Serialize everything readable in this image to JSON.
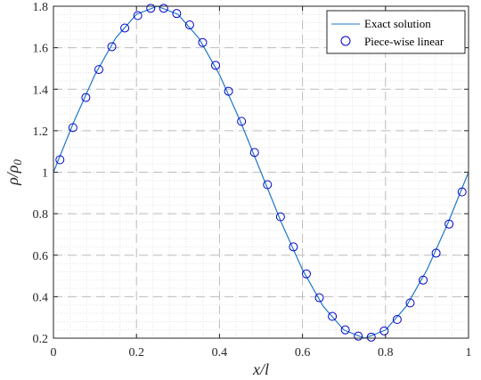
{
  "chart_data": {
    "type": "line",
    "title": "",
    "xlabel": "x/l",
    "ylabel_main": "ρ/ρ",
    "ylabel_sub": "0",
    "xlim": [
      0,
      1
    ],
    "ylim": [
      0.2,
      1.8
    ],
    "xticks": [
      0,
      0.2,
      0.4,
      0.6,
      0.8,
      1
    ],
    "xtick_labels": [
      "0",
      "0.2",
      "0.4",
      "0.6",
      "0.8",
      "1"
    ],
    "yticks": [
      0.2,
      0.4,
      0.6,
      0.8,
      1,
      1.2,
      1.4,
      1.6,
      1.8
    ],
    "ytick_labels": [
      "0.2",
      "0.4",
      "0.6",
      "0.8",
      "1",
      "1.2",
      "1.4",
      "1.6",
      "1.8"
    ],
    "grid": true,
    "legend_position": "top-right",
    "colors": {
      "line": "#1f78c8",
      "markers": "#0000cc",
      "grid_major": "#bdbdbd",
      "grid_minor": "#e3e3e3"
    },
    "series": [
      {
        "name": "Exact solution",
        "style": "line",
        "x": [
          0,
          0.05,
          0.1,
          0.15,
          0.2,
          0.25,
          0.3,
          0.35,
          0.4,
          0.45,
          0.5,
          0.55,
          0.6,
          0.65,
          0.7,
          0.75,
          0.8,
          0.85,
          0.9,
          0.95,
          1
        ],
        "y": [
          1.0,
          1.247,
          1.47,
          1.647,
          1.761,
          1.8,
          1.761,
          1.647,
          1.47,
          1.247,
          1.0,
          0.753,
          0.53,
          0.353,
          0.239,
          0.2,
          0.239,
          0.353,
          0.53,
          0.753,
          1.0
        ]
      },
      {
        "name": "Piece-wise linear",
        "style": "markers",
        "x": [
          0.0156,
          0.0469,
          0.0781,
          0.1094,
          0.1406,
          0.1719,
          0.2031,
          0.2344,
          0.2656,
          0.2969,
          0.3281,
          0.3594,
          0.3906,
          0.4219,
          0.4531,
          0.4844,
          0.5156,
          0.5469,
          0.5781,
          0.6094,
          0.6406,
          0.6719,
          0.7031,
          0.7344,
          0.7656,
          0.7969,
          0.8281,
          0.8594,
          0.8906,
          0.9219,
          0.9531,
          0.9844
        ],
        "y": [
          1.06,
          1.215,
          1.36,
          1.495,
          1.605,
          1.695,
          1.755,
          1.79,
          1.79,
          1.765,
          1.71,
          1.625,
          1.515,
          1.39,
          1.245,
          1.095,
          0.94,
          0.785,
          0.64,
          0.51,
          0.395,
          0.305,
          0.24,
          0.21,
          0.205,
          0.235,
          0.29,
          0.37,
          0.48,
          0.61,
          0.75,
          0.905
        ]
      }
    ]
  }
}
